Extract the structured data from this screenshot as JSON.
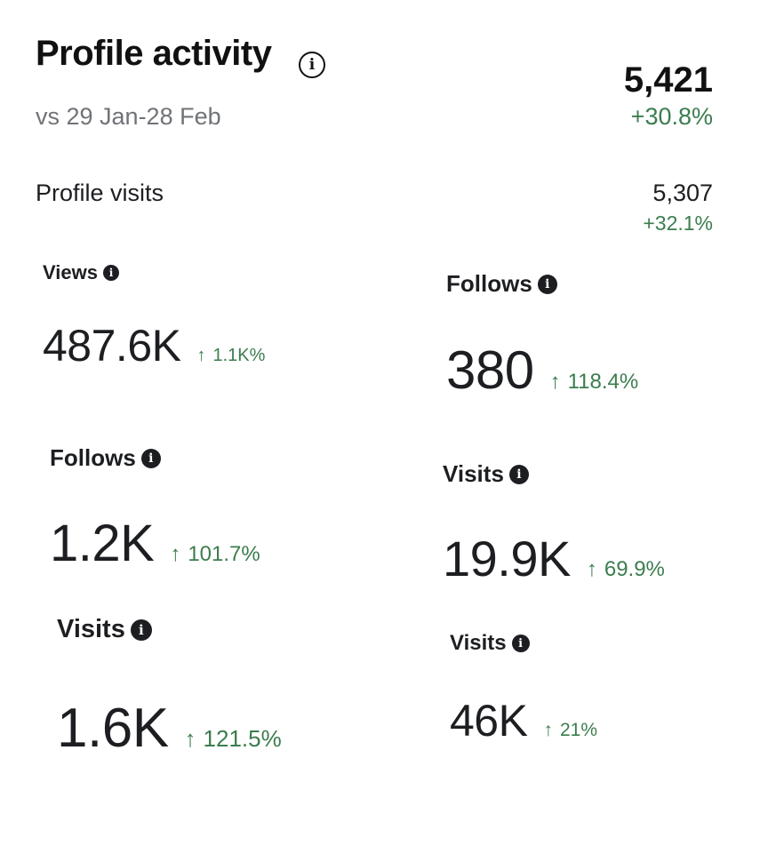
{
  "header": {
    "title": "Profile activity",
    "info_icon": "info-icon",
    "subtitle": "vs 29 Jan-28 Feb",
    "total_value": "5,421",
    "total_change": "+30.8%"
  },
  "profile_visits": {
    "label": "Profile visits",
    "value": "5,307",
    "change": "+32.1%"
  },
  "metrics": [
    {
      "label": "Views",
      "value": "487.6K",
      "change": "1.1K%"
    },
    {
      "label": "Follows",
      "value": "380",
      "change": "118.4%"
    },
    {
      "label": "Follows",
      "value": "1.2K",
      "change": "101.7%"
    },
    {
      "label": "Visits",
      "value": "19.9K",
      "change": "69.9%"
    },
    {
      "label": "Visits",
      "value": "1.6K",
      "change": "121.5%"
    },
    {
      "label": "Visits",
      "value": "46K",
      "change": "21%"
    }
  ],
  "colors": {
    "positive": "#3b7d4e",
    "text": "#1c1e21",
    "muted": "#707378"
  }
}
